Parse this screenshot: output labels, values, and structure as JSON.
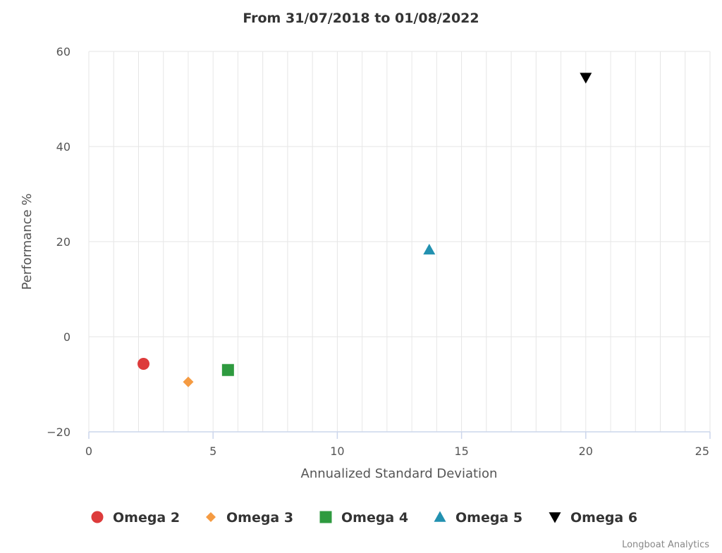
{
  "chart_data": {
    "type": "scatter",
    "title": "From 31/07/2018 to 01/08/2022",
    "xlabel": "Annualized Standard Deviation",
    "ylabel": "Performance %",
    "xlim": [
      0,
      25
    ],
    "ylim": [
      -20,
      60
    ],
    "x_ticks": [
      0,
      5,
      10,
      15,
      20,
      25
    ],
    "y_ticks": [
      -20,
      0,
      20,
      40,
      60
    ],
    "x_tick_labels": [
      "0",
      "5",
      "10",
      "15",
      "20",
      "25"
    ],
    "y_tick_labels": [
      "−20",
      "0",
      "20",
      "40",
      "60"
    ],
    "grid": true,
    "legend_position": "bottom-center",
    "series": [
      {
        "name": "Omega 2",
        "marker": "circle",
        "color": "#DD3B3B",
        "points": [
          {
            "x": 2.2,
            "y": -5.7
          }
        ]
      },
      {
        "name": "Omega 3",
        "marker": "diamond",
        "color": "#F59B42",
        "points": [
          {
            "x": 4.0,
            "y": -9.5
          }
        ]
      },
      {
        "name": "Omega 4",
        "marker": "square",
        "color": "#2E9A3F",
        "points": [
          {
            "x": 5.6,
            "y": -7.0
          }
        ]
      },
      {
        "name": "Omega 5",
        "marker": "triangle-up",
        "color": "#2291B0",
        "points": [
          {
            "x": 13.7,
            "y": 18.3
          }
        ]
      },
      {
        "name": "Omega 6",
        "marker": "triangle-down",
        "color": "#000000",
        "points": [
          {
            "x": 20.0,
            "y": 54.5
          }
        ]
      }
    ],
    "credits": "Longboat Analytics"
  }
}
